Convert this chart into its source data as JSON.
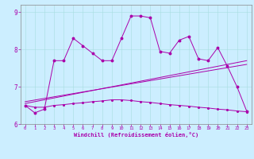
{
  "xlabel": "Windchill (Refroidissement éolien,°C)",
  "xlim": [
    -0.5,
    23.5
  ],
  "ylim": [
    6.0,
    9.2
  ],
  "yticks": [
    6,
    7,
    8,
    9
  ],
  "xticks": [
    0,
    1,
    2,
    3,
    4,
    5,
    6,
    7,
    8,
    9,
    10,
    11,
    12,
    13,
    14,
    15,
    16,
    17,
    18,
    19,
    20,
    21,
    22,
    23
  ],
  "bg_color": "#cceeff",
  "line_color": "#aa00aa",
  "main_series_x": [
    0,
    1,
    2,
    3,
    4,
    5,
    6,
    7,
    8,
    9,
    10,
    11,
    12,
    13,
    14,
    15,
    16,
    17,
    18,
    19,
    20,
    21,
    22,
    23
  ],
  "main_series_y": [
    6.5,
    6.3,
    6.4,
    7.7,
    7.7,
    8.3,
    8.1,
    7.9,
    7.7,
    7.7,
    8.3,
    8.9,
    8.9,
    8.85,
    7.95,
    7.9,
    8.25,
    8.35,
    7.75,
    7.7,
    8.05,
    7.55,
    7.0,
    6.35
  ],
  "reg_line1_x": [
    0,
    23
  ],
  "reg_line1_y": [
    6.55,
    7.7
  ],
  "reg_line2_x": [
    0,
    23
  ],
  "reg_line2_y": [
    6.6,
    7.6
  ],
  "lower_series_x": [
    0,
    1,
    2,
    3,
    4,
    5,
    6,
    7,
    8,
    9,
    10,
    11,
    12,
    13,
    14,
    15,
    16,
    17,
    18,
    19,
    20,
    21,
    22,
    23
  ],
  "lower_series_y": [
    6.5,
    6.45,
    6.45,
    6.5,
    6.52,
    6.55,
    6.57,
    6.6,
    6.62,
    6.65,
    6.65,
    6.63,
    6.6,
    6.58,
    6.55,
    6.52,
    6.5,
    6.48,
    6.45,
    6.43,
    6.4,
    6.38,
    6.35,
    6.33
  ]
}
